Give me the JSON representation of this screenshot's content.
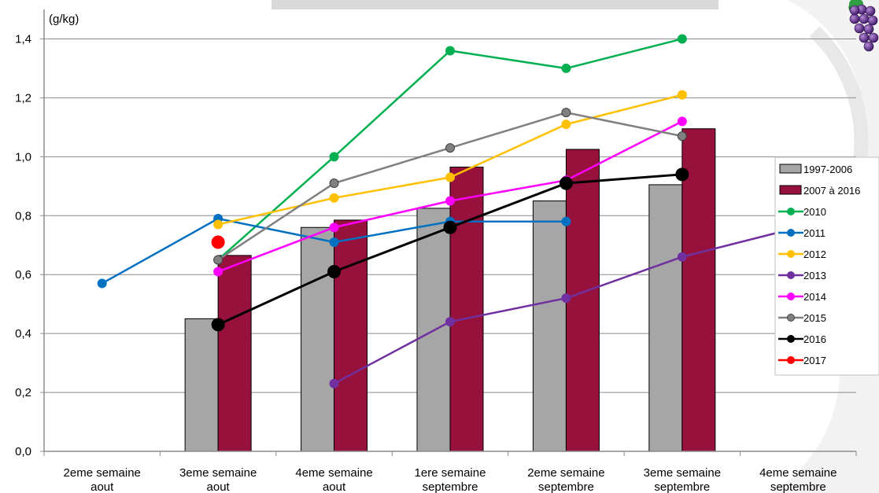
{
  "chart_data": {
    "type": "bar",
    "ylabel": "(g/kg)",
    "ylim": [
      0,
      1.5
    ],
    "yticks": [
      0,
      0.2,
      0.4,
      0.6,
      0.8,
      1.0,
      1.2,
      1.4
    ],
    "ytick_labels": [
      "0,0",
      "0,2",
      "0,4",
      "0,6",
      "0,8",
      "1,0",
      "1,2",
      "1,4"
    ],
    "grid": true,
    "legend_position": "right",
    "categories": [
      [
        "2eme semaine",
        "aout"
      ],
      [
        "3eme semaine",
        "aout"
      ],
      [
        "4eme semaine",
        "aout"
      ],
      [
        "1ere semaine",
        "septembre"
      ],
      [
        "2eme semaine",
        "septembre"
      ],
      [
        "3eme semaine",
        "septembre"
      ],
      [
        "4eme semaine",
        "septembre"
      ]
    ],
    "bar_series": [
      {
        "name": "1997-2006",
        "color": "#a6a6a6",
        "values": [
          null,
          0.45,
          0.76,
          0.825,
          0.85,
          0.905,
          null
        ]
      },
      {
        "name": "2007 à 2016",
        "color": "#96113c",
        "values": [
          null,
          0.665,
          0.785,
          0.965,
          1.025,
          1.095,
          null
        ]
      }
    ],
    "line_series": [
      {
        "name": "2010",
        "color": "#00b050",
        "values": [
          null,
          0.65,
          1.0,
          1.36,
          1.3,
          1.4,
          null
        ]
      },
      {
        "name": "2011",
        "color": "#0070c0",
        "values": [
          0.57,
          0.79,
          0.71,
          0.78,
          0.78,
          null,
          null
        ]
      },
      {
        "name": "2012",
        "color": "#ffc000",
        "values": [
          null,
          0.77,
          0.86,
          0.93,
          1.11,
          1.21,
          null
        ]
      },
      {
        "name": "2013",
        "color": "#7030a0",
        "values": [
          null,
          null,
          0.23,
          0.44,
          0.52,
          0.66,
          0.76
        ]
      },
      {
        "name": "2014",
        "color": "#ff00ff",
        "values": [
          null,
          0.61,
          0.76,
          0.85,
          0.92,
          1.12,
          null
        ]
      },
      {
        "name": "2015",
        "color": "#808080",
        "values": [
          null,
          0.65,
          0.91,
          1.03,
          1.15,
          1.07,
          null
        ]
      },
      {
        "name": "2016",
        "color": "#000000",
        "values": [
          null,
          0.43,
          0.61,
          0.76,
          0.91,
          0.94,
          null
        ]
      },
      {
        "name": "2017",
        "color": "#ff0000",
        "values": [
          null,
          0.71,
          null,
          null,
          null,
          null,
          null
        ]
      }
    ]
  }
}
